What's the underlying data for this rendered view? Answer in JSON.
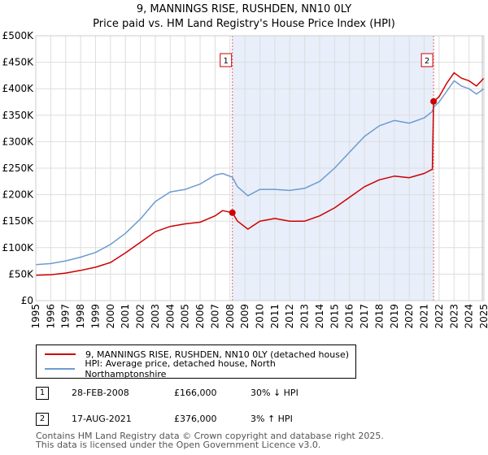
{
  "header": {
    "title": "9, MANNINGS RISE, RUSHDEN, NN10 0LY",
    "subtitle": "Price paid vs. HM Land Registry's House Price Index (HPI)"
  },
  "chart_data": {
    "type": "line",
    "xlim": [
      1995,
      2025
    ],
    "ylim": [
      0,
      500000
    ],
    "x_ticks": [
      "1995",
      "1996",
      "1997",
      "1998",
      "1999",
      "2000",
      "2001",
      "2002",
      "2003",
      "2004",
      "2005",
      "2006",
      "2007",
      "2008",
      "2009",
      "2010",
      "2011",
      "2012",
      "2013",
      "2014",
      "2015",
      "2016",
      "2017",
      "2018",
      "2019",
      "2020",
      "2021",
      "2022",
      "2023",
      "2024",
      "2025"
    ],
    "y_ticks": [
      {
        "value": 0,
        "label": "£0"
      },
      {
        "value": 50000,
        "label": "£50K"
      },
      {
        "value": 100000,
        "label": "£100K"
      },
      {
        "value": 150000,
        "label": "£150K"
      },
      {
        "value": 200000,
        "label": "£200K"
      },
      {
        "value": 250000,
        "label": "£250K"
      },
      {
        "value": 300000,
        "label": "£300K"
      },
      {
        "value": 350000,
        "label": "£350K"
      },
      {
        "value": 400000,
        "label": "£400K"
      },
      {
        "value": 450000,
        "label": "£450K"
      },
      {
        "value": 500000,
        "label": "£500K"
      }
    ],
    "shaded_period": [
      2008.16,
      2021.63
    ],
    "series": [
      {
        "name": "9, MANNINGS RISE, RUSHDEN, NN10 0LY (detached house)",
        "color": "#cc0000",
        "x": [
          1995,
          1996,
          1997,
          1998,
          1999,
          2000,
          2001,
          2002,
          2003,
          2004,
          2005,
          2006,
          2007,
          2007.5,
          2008.16,
          2008.5,
          2009.2,
          2010,
          2011,
          2012,
          2013,
          2014,
          2015,
          2016,
          2017,
          2018,
          2019,
          2020,
          2021,
          2021.55,
          2021.63,
          2022,
          2022.5,
          2023,
          2023.5,
          2024,
          2024.5,
          2025
        ],
        "values": [
          48000,
          49000,
          52000,
          57000,
          63000,
          72000,
          90000,
          110000,
          130000,
          140000,
          145000,
          148000,
          160000,
          170000,
          166000,
          150000,
          135000,
          150000,
          155000,
          150000,
          150000,
          160000,
          175000,
          195000,
          215000,
          228000,
          235000,
          232000,
          240000,
          248000,
          376000,
          385000,
          410000,
          430000,
          420000,
          415000,
          405000,
          420000
        ]
      },
      {
        "name": "HPI: Average price, detached house, North Northamptonshire",
        "color": "#6b9bd2",
        "x": [
          1995,
          1996,
          1997,
          1998,
          1999,
          2000,
          2001,
          2002,
          2003,
          2004,
          2005,
          2006,
          2007,
          2007.5,
          2008.16,
          2008.5,
          2009.2,
          2010,
          2011,
          2012,
          2013,
          2014,
          2015,
          2016,
          2017,
          2018,
          2019,
          2020,
          2021,
          2021.55,
          2021.63,
          2022,
          2022.5,
          2023,
          2023.5,
          2024,
          2024.5,
          2025
        ],
        "values": [
          68000,
          70000,
          75000,
          82000,
          91000,
          106000,
          127000,
          154000,
          187000,
          205000,
          210000,
          220000,
          237000,
          240000,
          233000,
          215000,
          198000,
          210000,
          210000,
          208000,
          212000,
          225000,
          250000,
          280000,
          310000,
          330000,
          340000,
          335000,
          345000,
          357000,
          365000,
          375000,
          395000,
          415000,
          405000,
          400000,
          390000,
          400000
        ]
      }
    ],
    "sales": [
      {
        "label": "1",
        "x": 2008.16,
        "value": 166000
      },
      {
        "label": "2",
        "x": 2021.63,
        "value": 376000
      }
    ]
  },
  "legend": {
    "items": [
      {
        "label": "9, MANNINGS RISE, RUSHDEN, NN10 0LY (detached house)",
        "color": "#cc0000"
      },
      {
        "label": "HPI: Average price, detached house, North Northamptonshire",
        "color": "#6b9bd2"
      }
    ]
  },
  "transactions": [
    {
      "num": "1",
      "date": "28-FEB-2008",
      "price": "£166,000",
      "hpi": "30% ↓ HPI"
    },
    {
      "num": "2",
      "date": "17-AUG-2021",
      "price": "£376,000",
      "hpi": "3% ↑ HPI"
    }
  ],
  "footer": {
    "line1": "Contains HM Land Registry data © Crown copyright and database right 2025.",
    "line2": "This data is licensed under the Open Government Licence v3.0."
  }
}
